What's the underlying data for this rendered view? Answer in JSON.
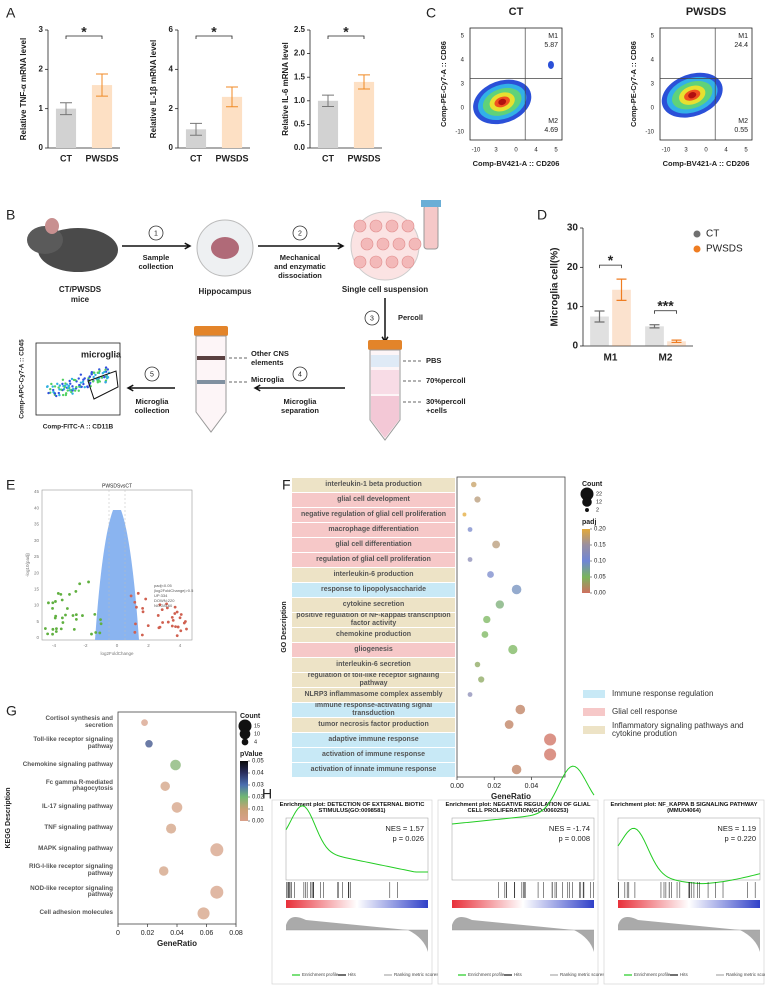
{
  "panel_letters": [
    "A",
    "B",
    "C",
    "D",
    "E",
    "F",
    "G",
    "H"
  ],
  "chart_data": [
    {
      "type": "bar",
      "ylabel": "Relative TNF-α mRNA level",
      "categories": [
        "CT",
        "PWSDS"
      ],
      "values": [
        1.0,
        1.6
      ],
      "errors": [
        0.15,
        0.28
      ],
      "colors": [
        "#d2d2d2",
        "#fde0c4"
      ],
      "edge_colors": [
        "#777777",
        "#f08a24"
      ],
      "ylim": [
        0,
        3
      ],
      "yticks": [
        0,
        1,
        2,
        3
      ],
      "significance": "*"
    },
    {
      "type": "bar",
      "ylabel": "Relative IL-1β mRNA level",
      "categories": [
        "CT",
        "PWSDS"
      ],
      "values": [
        0.95,
        2.6
      ],
      "errors": [
        0.3,
        0.5
      ],
      "colors": [
        "#d2d2d2",
        "#fde0c4"
      ],
      "edge_colors": [
        "#777777",
        "#f08a24"
      ],
      "ylim": [
        0,
        6
      ],
      "yticks": [
        0,
        2,
        4,
        6
      ],
      "significance": "*"
    },
    {
      "type": "bar",
      "ylabel": "Relative IL-6 mRNA level",
      "categories": [
        "CT",
        "PWSDS"
      ],
      "values": [
        1.0,
        1.4
      ],
      "errors": [
        0.12,
        0.15
      ],
      "colors": [
        "#d2d2d2",
        "#fde0c4"
      ],
      "edge_colors": [
        "#777777",
        "#f08a24"
      ],
      "ylim": [
        0,
        2.5
      ],
      "yticks": [
        {
          "value": 0,
          "label": "0.0"
        },
        {
          "value": 0.5,
          "label": "0.5"
        },
        {
          "value": 1,
          "label": "1.0"
        },
        {
          "value": 1.5,
          "label": "1.5"
        },
        {
          "value": 2,
          "label": "2.0"
        },
        {
          "value": 2.5,
          "label": "2.5"
        }
      ],
      "significance": "*"
    },
    {
      "type": "grouped_bar",
      "ylabel": "Microglia cell(%)",
      "categories": [
        "M1",
        "M2"
      ],
      "series": [
        {
          "name": "CT",
          "color": "#707070",
          "values": [
            7.5,
            5.0
          ],
          "errors": [
            1.4,
            0.4
          ]
        },
        {
          "name": "PWSDS",
          "color": "#ef7d22",
          "values": [
            14.3,
            1.2
          ],
          "errors": [
            2.7,
            0.3
          ]
        }
      ],
      "ylim": [
        0,
        30
      ],
      "yticks": [
        0,
        10,
        20,
        30
      ],
      "significance": [
        "*",
        "***"
      ]
    },
    {
      "type": "dot",
      "ylabel": "GO Description",
      "xlabel": "GeneRatio",
      "categories": [
        "interleukin-1 beta production",
        "glial cell development",
        "negative regulation of glial cell proliferation",
        "macrophage differentiation",
        "glial cell differentiation",
        "regulation of glial cell proliferation",
        "interleukin-6 production",
        "response to lipopolysaccharide",
        "cytokine secretion",
        "positive regulation of NF-kappaB transcription factor activity",
        "chemokine production",
        "gliogenesis",
        "interleukin-6 secretion",
        "regulation of toll-like receptor signaling pathway",
        "NLRP3 inflammasome complex assembly",
        "immune response-activating signal transduction",
        "tumor necrosis factor production",
        "adaptive immune response",
        "activation of immune response",
        "activation of innate immune response"
      ],
      "values": [
        0.009,
        0.011,
        0.004,
        0.007,
        0.021,
        0.007,
        0.018,
        0.032,
        0.023,
        0.016,
        0.015,
        0.03,
        0.011,
        0.013,
        0.007,
        0.034,
        0.028,
        0.05,
        0.05,
        0.032
      ],
      "counts": [
        4,
        5,
        2,
        3,
        8,
        3,
        6,
        12,
        9,
        7,
        6,
        11,
        4,
        5,
        3,
        12,
        10,
        19,
        19,
        12
      ],
      "padj": [
        0.18,
        0.17,
        0.2,
        0.11,
        0.17,
        0.13,
        0.11,
        0.09,
        0.06,
        0.05,
        0.05,
        0.05,
        0.04,
        0.04,
        0.13,
        0.01,
        0.01,
        0.0,
        0.0,
        0.01
      ],
      "term_colors": [
        "#ede3c6",
        "#f6c8c8",
        "#f6c8c8",
        "#f6c8c8",
        "#f6c8c8",
        "#f6c8c8",
        "#ede3c6",
        "#c8e9f6",
        "#ede3c6",
        "#ede3c6",
        "#ede3c6",
        "#f6c8c8",
        "#ede3c6",
        "#ede3c6",
        "#ede3c6",
        "#c8e9f6",
        "#ede3c6",
        "#c8e9f6",
        "#c8e9f6",
        "#c8e9f6"
      ],
      "xlim": [
        0,
        0.058
      ],
      "xticks": [
        {
          "value": 0,
          "label": "0.00"
        },
        {
          "value": 0.02,
          "label": "0.02"
        },
        {
          "value": 0.04,
          "label": "0.04"
        }
      ],
      "size_legend_title": "Count",
      "size_legend": [
        22,
        12,
        2
      ],
      "color_legend_title": "padj",
      "clim": [
        0,
        0.2
      ],
      "colormap": [
        "#cf6f5f",
        "#7ab55c",
        "#6f86d6",
        "#9a8fa0",
        "#e3a93a"
      ],
      "color_ticks": [
        {
          "value": 0,
          "label": "0.00"
        },
        {
          "value": 0.05,
          "label": "0.05"
        },
        {
          "value": 0.1,
          "label": "0.10"
        },
        {
          "value": 0.15,
          "label": "0.15"
        },
        {
          "value": 0.2,
          "label": "0.20"
        }
      ],
      "group_legend": [
        {
          "name": "Immune response regulation",
          "color": "#c8e9f6"
        },
        {
          "name": "Glial cell response",
          "color": "#f6c8c8"
        },
        {
          "name": "Inflammatory signaling pathways and cytokine prodution",
          "color": "#ede3c6"
        }
      ]
    },
    {
      "type": "dot",
      "ylabel": "KEGG Description",
      "xlabel": "GeneRatio",
      "categories": [
        "Cortisol synthesis and secretion",
        "Toll-like receptor signaling pathway",
        "Chemokine signaling pathway",
        "Fc gamma R-mediated phagocytosis",
        "IL-17 signaling pathway",
        "TNF signaling pathway",
        "MAPK signaling pathway",
        "RIG-I-like receptor signaling pathway",
        "NOD-like receptor signaling pathway",
        "Cell adhesion molecules"
      ],
      "values": [
        0.018,
        0.021,
        0.039,
        0.032,
        0.04,
        0.036,
        0.067,
        0.031,
        0.067,
        0.058
      ],
      "counts": [
        4,
        5,
        10,
        8,
        10,
        9,
        15,
        8,
        15,
        13
      ],
      "padj": [
        0.001,
        0.035,
        0.018,
        0.004,
        0.003,
        0.004,
        0.002,
        0.004,
        0.002,
        0.003
      ],
      "xlim": [
        0,
        0.08
      ],
      "xticks": [
        0,
        0.02,
        0.04,
        0.06,
        0.08
      ],
      "size_legend_title": "Count",
      "size_legend": [
        15,
        10,
        4
      ],
      "color_legend_title": "pValue",
      "clim": [
        0,
        0.05
      ],
      "colormap": [
        "#d9a08a",
        "#c8a074",
        "#72b872",
        "#4a6fb0",
        "#2a2f60",
        "#0a0a0a"
      ],
      "color_ticks": [
        0.05,
        0.04,
        0.03,
        0.02,
        0.01,
        {
          "value": 0,
          "label": "0.00"
        }
      ]
    }
  ],
  "flow": {
    "titles": [
      "CT",
      "PWSDS"
    ],
    "quadrants": [
      {
        "m1": "M1",
        "m1_value": 5.87,
        "m2": "M2",
        "m2_value": 4.69
      },
      {
        "m1": "M1",
        "m1_value": 24.4,
        "m2": "M2",
        "m2_value": 0.55
      }
    ],
    "ylabel": "Comp-PE-Cy7-A :: CD86",
    "xlabel": "Comp-BV421-A :: CD206",
    "xticks": [
      "-10",
      "3",
      "0",
      "4",
      "5"
    ],
    "yticks": [
      "5",
      "4",
      "3",
      "0",
      "-10"
    ]
  },
  "workflow": {
    "mouse": [
      "CT/PWSDS",
      "mice"
    ],
    "hippocampus": "Hippocampus",
    "suspension": "Single cell suspension",
    "steps": [
      {
        "num": "1",
        "label": [
          "Sample",
          "collection"
        ]
      },
      {
        "num": "2",
        "label": [
          "Mechanical",
          "and enzymatic",
          "dissociation"
        ]
      },
      {
        "num": "3",
        "label": [
          "Percoll"
        ]
      },
      {
        "num": "4",
        "label": [
          "Microglia",
          "separation"
        ]
      },
      {
        "num": "5",
        "label": [
          "Microglia",
          "collection"
        ]
      }
    ],
    "layers": [
      "PBS",
      "70%percoll",
      "30%percoll",
      "+cells"
    ],
    "fractions": [
      "Other CNS",
      "elements",
      "Microglia"
    ],
    "gate": "microglia",
    "ylabel": "Comp-APC-Cy7-A :: CD45",
    "xlabel": "Comp-FITC-A :: CD11B"
  },
  "volcano": {
    "title": "PWSDSvsCT",
    "xlabel": "log2FoldChange",
    "ylabel": "-log10(padj)",
    "legend": [
      "padj<0.05",
      "|log2FoldChange|>0.5",
      "UP:334",
      "DOWN:220",
      "NO:28160"
    ],
    "yticks": [
      "45",
      "40",
      "35",
      "30",
      "25",
      "20",
      "15",
      "10",
      "5",
      "0"
    ],
    "xticks": [
      "-4",
      "-2",
      "0",
      "2",
      "4"
    ]
  },
  "gsea": {
    "plots": [
      {
        "title": "Enrichment plot: DETECTION OF EXTERNAL BIOTIC STIMULUS(GO:0098581)",
        "nes": "NES = 1.57",
        "p": "p = 0.026"
      },
      {
        "title": "Enrichment plot: NEGATIVE REGULATION OF GLIAL CELL PROLIFERATION(GO:0060253)",
        "nes": "NES = -1.74",
        "p": "p = 0.008"
      },
      {
        "title": "Enrichment plot: NF_KAPPA B SIGNALING PATHWAY (MMU04064)",
        "nes": "NES = 1.19",
        "p": "p = 0.220"
      }
    ],
    "legend": [
      "Enrichment profile",
      "Hits",
      "Ranking metric scores"
    ]
  }
}
